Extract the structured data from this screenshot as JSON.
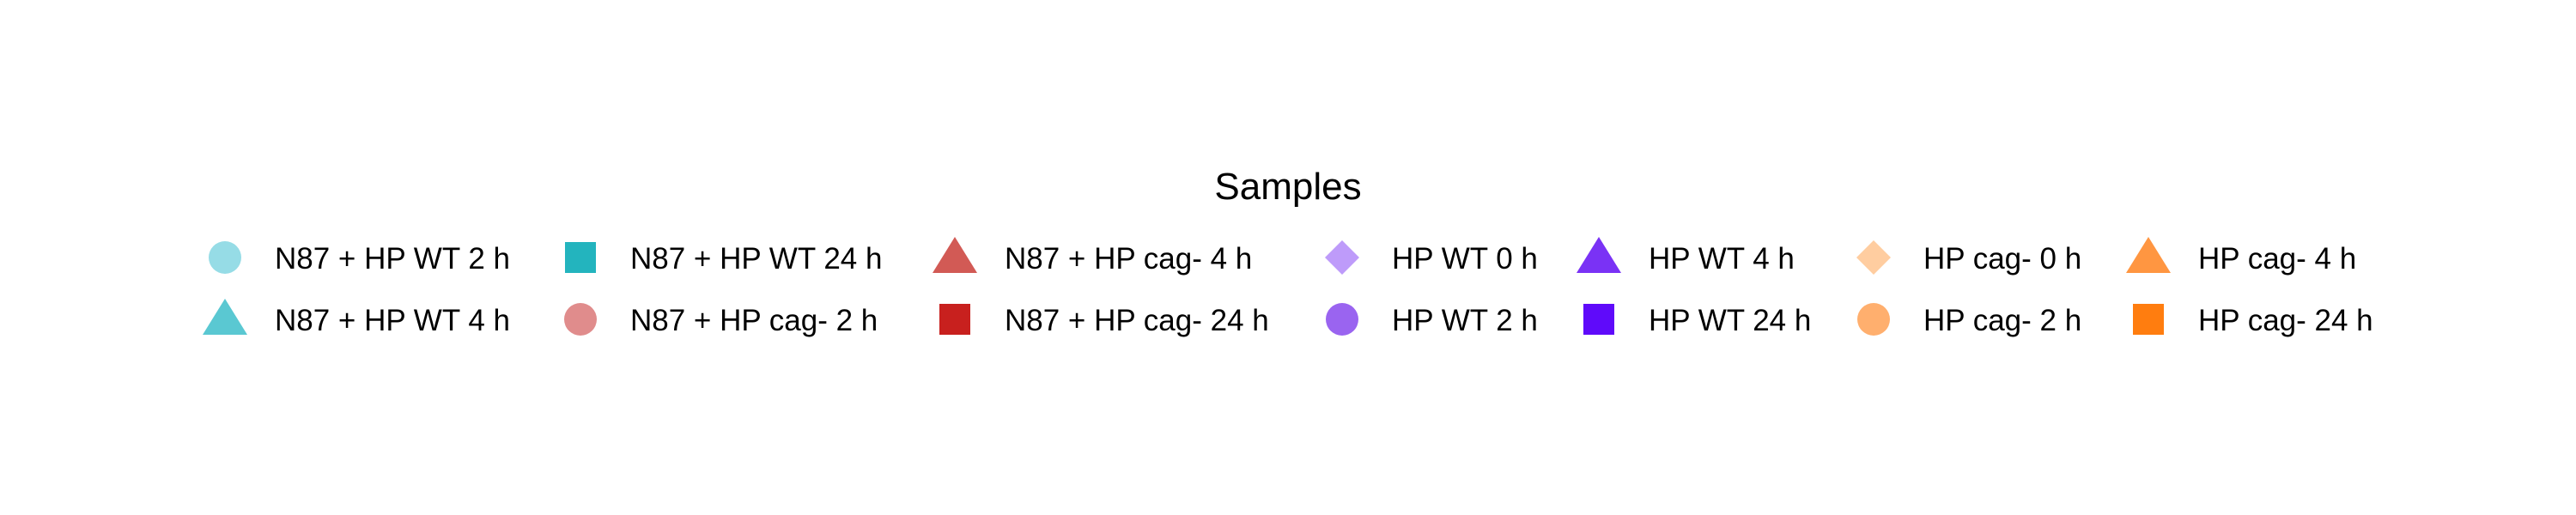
{
  "chart_data": {
    "type": "legend",
    "title": "Samples",
    "entries": [
      {
        "label": "N87 + HP WT 2 h",
        "shape": "circle",
        "color": "#96DCE6"
      },
      {
        "label": "N87 + HP WT 4 h",
        "shape": "triangle",
        "color": "#5AC8D2"
      },
      {
        "label": "N87 + HP WT 24 h",
        "shape": "square",
        "color": "#23B4BE"
      },
      {
        "label": "N87 + HP cag- 2 h",
        "shape": "circle",
        "color": "#E08C8C"
      },
      {
        "label": "N87 + HP cag- 4 h",
        "shape": "triangle",
        "color": "#D25A55"
      },
      {
        "label": "N87 + HP cag- 24 h",
        "shape": "square",
        "color": "#C8201E"
      },
      {
        "label": "HP WT 0 h",
        "shape": "diamond",
        "color": "#BE9BFA"
      },
      {
        "label": "HP WT 2 h",
        "shape": "circle",
        "color": "#9A64F0"
      },
      {
        "label": "HP WT 4 h",
        "shape": "triangle",
        "color": "#7A32F5"
      },
      {
        "label": "HP WT 24 h",
        "shape": "square",
        "color": "#5F0AFA"
      },
      {
        "label": "HP cag- 0 h",
        "shape": "diamond",
        "color": "#FFCDA0"
      },
      {
        "label": "HP cag- 2 h",
        "shape": "circle",
        "color": "#FFAF6E"
      },
      {
        "label": "HP cag- 4 h",
        "shape": "triangle",
        "color": "#FF9641"
      },
      {
        "label": "HP cag- 24 h",
        "shape": "square",
        "color": "#FF7D0F"
      }
    ]
  }
}
